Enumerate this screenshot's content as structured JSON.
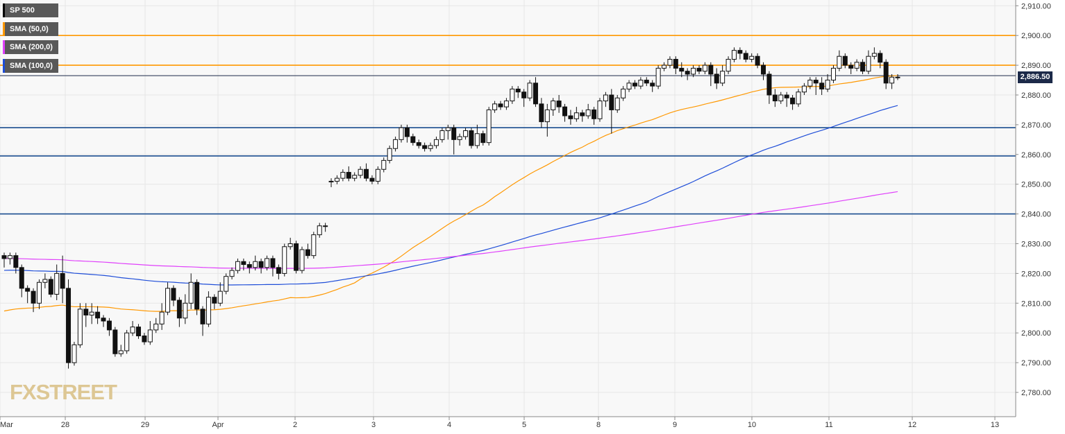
{
  "legend": [
    {
      "label": "SP 500",
      "color": "#000000"
    },
    {
      "label": "SMA (50,0)",
      "color": "#ff9800"
    },
    {
      "label": "SMA (200,0)",
      "color": "#e040fb"
    },
    {
      "label": "SMA (100,0)",
      "color": "#1e4dd8"
    }
  ],
  "price_tag": "2,886.50",
  "watermark": {
    "a": "FX",
    "b": "STREET"
  },
  "chart_data": {
    "type": "candlestick",
    "ylim": [
      2772,
      2912
    ],
    "yticks": [
      "2,780.00",
      "2,790.00",
      "2,800.00",
      "2,810.00",
      "2,820.00",
      "2,830.00",
      "2,840.00",
      "2,850.00",
      "2,860.00",
      "2,870.00",
      "2,880.00",
      "2,890.00",
      "2,900.00",
      "2,910.00"
    ],
    "xticks": [
      "Mar",
      "28",
      "29",
      "Apr",
      "2",
      "3",
      "4",
      "5",
      "8",
      "9",
      "10",
      "11",
      "12",
      "13"
    ],
    "last_price": 2886.5,
    "horizontal_lines": [
      {
        "value": 2900,
        "color": "#ff9800"
      },
      {
        "value": 2890,
        "color": "#ff9800"
      },
      {
        "value": 2869,
        "color": "#1a4d8f"
      },
      {
        "value": 2859.5,
        "color": "#1a4d8f"
      },
      {
        "value": 2840,
        "color": "#1a4d8f"
      },
      {
        "value": 2886.5,
        "color": "#1c2a49"
      }
    ],
    "candles": [
      [
        2826,
        2825,
        2827,
        2822
      ],
      [
        2825,
        2826,
        2827,
        2823
      ],
      [
        2826,
        2822,
        2827,
        2820
      ],
      [
        2822,
        2815,
        2823,
        2812
      ],
      [
        2815,
        2814,
        2816,
        2810
      ],
      [
        2814,
        2810,
        2815,
        2807
      ],
      [
        2810,
        2817,
        2818,
        2808
      ],
      [
        2817,
        2818,
        2820,
        2815
      ],
      [
        2818,
        2813,
        2819,
        2812
      ],
      [
        2813,
        2820,
        2823,
        2811
      ],
      [
        2820,
        2815,
        2826,
        2810
      ],
      [
        2815,
        2790,
        2818,
        2788
      ],
      [
        2790,
        2796,
        2797,
        2789
      ],
      [
        2796,
        2808,
        2810,
        2795
      ],
      [
        2808,
        2806,
        2810,
        2802
      ],
      [
        2806,
        2807,
        2810,
        2803
      ],
      [
        2807,
        2805,
        2809,
        2803
      ],
      [
        2805,
        2804,
        2806,
        2802
      ],
      [
        2804,
        2801,
        2805,
        2799
      ],
      [
        2801,
        2793,
        2802,
        2792
      ],
      [
        2793,
        2794,
        2796,
        2792
      ],
      [
        2794,
        2800,
        2801,
        2793
      ],
      [
        2800,
        2802,
        2804,
        2799
      ],
      [
        2802,
        2799,
        2803,
        2798
      ],
      [
        2799,
        2797,
        2800,
        2796
      ],
      [
        2797,
        2801,
        2804,
        2796
      ],
      [
        2801,
        2803,
        2805,
        2800
      ],
      [
        2803,
        2807,
        2810,
        2801
      ],
      [
        2807,
        2815,
        2817,
        2806
      ],
      [
        2815,
        2811,
        2816,
        2809
      ],
      [
        2811,
        2805,
        2812,
        2802
      ],
      [
        2805,
        2810,
        2813,
        2803
      ],
      [
        2810,
        2817,
        2820,
        2808
      ],
      [
        2817,
        2808,
        2818,
        2806
      ],
      [
        2808,
        2803,
        2809,
        2799
      ],
      [
        2803,
        2812,
        2814,
        2802
      ],
      [
        2812,
        2810,
        2813,
        2808
      ],
      [
        2810,
        2814,
        2817,
        2809
      ],
      [
        2814,
        2819,
        2820,
        2813
      ],
      [
        2819,
        2821,
        2822,
        2818
      ],
      [
        2821,
        2824,
        2825,
        2820
      ],
      [
        2824,
        2823,
        2825,
        2821
      ],
      [
        2823,
        2822,
        2824,
        2820
      ],
      [
        2822,
        2824,
        2826,
        2821
      ],
      [
        2824,
        2822,
        2825,
        2820
      ],
      [
        2822,
        2825,
        2826,
        2821
      ],
      [
        2825,
        2822,
        2826,
        2819
      ],
      [
        2822,
        2820,
        2823,
        2818
      ],
      [
        2820,
        2829,
        2830,
        2819
      ],
      [
        2829,
        2830,
        2832,
        2828
      ],
      [
        2830,
        2821,
        2831,
        2820
      ],
      [
        2821,
        2828,
        2829,
        2820
      ],
      [
        2828,
        2826,
        2830,
        2825
      ],
      [
        2826,
        2833,
        2834,
        2825
      ],
      [
        2833,
        2836,
        2837,
        2832
      ],
      [
        2836,
        2836,
        2837,
        2834
      ],
      [
        2851,
        2851,
        2852,
        2849
      ],
      [
        2851,
        2852,
        2853,
        2850
      ],
      [
        2852,
        2854,
        2855,
        2851
      ],
      [
        2854,
        2852,
        2856,
        2851
      ],
      [
        2852,
        2853,
        2854,
        2851
      ],
      [
        2853,
        2855,
        2856,
        2852
      ],
      [
        2855,
        2852,
        2857,
        2851
      ],
      [
        2852,
        2851,
        2853,
        2850
      ],
      [
        2851,
        2855,
        2856,
        2850
      ],
      [
        2855,
        2858,
        2859,
        2854
      ],
      [
        2858,
        2862,
        2863,
        2857
      ],
      [
        2862,
        2865,
        2866,
        2861
      ],
      [
        2865,
        2869,
        2870,
        2864
      ],
      [
        2869,
        2866,
        2870,
        2864
      ],
      [
        2866,
        2864,
        2867,
        2863
      ],
      [
        2864,
        2863,
        2865,
        2862
      ],
      [
        2863,
        2862,
        2864,
        2861
      ],
      [
        2862,
        2863,
        2864,
        2861
      ],
      [
        2863,
        2865,
        2866,
        2862
      ],
      [
        2865,
        2868,
        2869,
        2864
      ],
      [
        2868,
        2869,
        2870,
        2865
      ],
      [
        2869,
        2865,
        2870,
        2860
      ],
      [
        2865,
        2866,
        2867,
        2863
      ],
      [
        2866,
        2868,
        2869,
        2865
      ],
      [
        2868,
        2863,
        2869,
        2862
      ],
      [
        2863,
        2867,
        2870,
        2862
      ],
      [
        2867,
        2864,
        2868,
        2863
      ],
      [
        2864,
        2875,
        2876,
        2863
      ],
      [
        2875,
        2877,
        2878,
        2874
      ],
      [
        2877,
        2876,
        2878,
        2875
      ],
      [
        2876,
        2878,
        2879,
        2875
      ],
      [
        2878,
        2882,
        2883,
        2877
      ],
      [
        2882,
        2881,
        2883,
        2879
      ],
      [
        2881,
        2879,
        2882,
        2876
      ],
      [
        2879,
        2884,
        2885,
        2878
      ],
      [
        2884,
        2877,
        2886,
        2876
      ],
      [
        2877,
        2871,
        2879,
        2869
      ],
      [
        2871,
        2875,
        2877,
        2866
      ],
      [
        2875,
        2878,
        2879,
        2873
      ],
      [
        2878,
        2876,
        2880,
        2874
      ],
      [
        2876,
        2873,
        2877,
        2871
      ],
      [
        2873,
        2872,
        2875,
        2870
      ],
      [
        2872,
        2874,
        2876,
        2871
      ],
      [
        2874,
        2873,
        2875,
        2871
      ],
      [
        2873,
        2875,
        2877,
        2872
      ],
      [
        2875,
        2872,
        2876,
        2870
      ],
      [
        2872,
        2878,
        2879,
        2871
      ],
      [
        2878,
        2880,
        2881,
        2876
      ],
      [
        2880,
        2875,
        2882,
        2867
      ],
      [
        2875,
        2879,
        2880,
        2874
      ],
      [
        2879,
        2882,
        2883,
        2878
      ],
      [
        2882,
        2884,
        2885,
        2881
      ],
      [
        2884,
        2883,
        2885,
        2882
      ],
      [
        2883,
        2885,
        2886,
        2882
      ],
      [
        2885,
        2884,
        2886,
        2883
      ],
      [
        2884,
        2883,
        2885,
        2881
      ],
      [
        2883,
        2889,
        2890,
        2882
      ],
      [
        2889,
        2890,
        2891,
        2888
      ],
      [
        2890,
        2892,
        2893,
        2889
      ],
      [
        2892,
        2889,
        2893,
        2887
      ],
      [
        2889,
        2888,
        2891,
        2886
      ],
      [
        2888,
        2887,
        2889,
        2885
      ],
      [
        2887,
        2889,
        2890,
        2886
      ],
      [
        2889,
        2888,
        2890,
        2887
      ],
      [
        2888,
        2890,
        2891,
        2887
      ],
      [
        2890,
        2887,
        2891,
        2883
      ],
      [
        2887,
        2884,
        2889,
        2882
      ],
      [
        2884,
        2888,
        2890,
        2883
      ],
      [
        2888,
        2892,
        2893,
        2887
      ],
      [
        2892,
        2895,
        2896,
        2891
      ],
      [
        2895,
        2894,
        2896,
        2892
      ],
      [
        2894,
        2892,
        2895,
        2891
      ],
      [
        2892,
        2893,
        2894,
        2891
      ],
      [
        2893,
        2890,
        2894,
        2889
      ],
      [
        2890,
        2887,
        2891,
        2885
      ],
      [
        2887,
        2880,
        2888,
        2877
      ],
      [
        2880,
        2878,
        2882,
        2876
      ],
      [
        2878,
        2880,
        2881,
        2877
      ],
      [
        2880,
        2879,
        2881,
        2876
      ],
      [
        2879,
        2877,
        2880,
        2875
      ],
      [
        2877,
        2881,
        2882,
        2876
      ],
      [
        2881,
        2883,
        2884,
        2880
      ],
      [
        2883,
        2885,
        2886,
        2882
      ],
      [
        2885,
        2884,
        2886,
        2880
      ],
      [
        2884,
        2882,
        2886,
        2880
      ],
      [
        2882,
        2885,
        2887,
        2881
      ],
      [
        2885,
        2889,
        2890,
        2884
      ],
      [
        2889,
        2893,
        2895,
        2888
      ],
      [
        2893,
        2890,
        2894,
        2889
      ],
      [
        2890,
        2889,
        2891,
        2887
      ],
      [
        2889,
        2891,
        2892,
        2888
      ],
      [
        2891,
        2888,
        2892,
        2887
      ],
      [
        2888,
        2893,
        2895,
        2887
      ],
      [
        2893,
        2894,
        2896,
        2892
      ],
      [
        2894,
        2891,
        2895,
        2889
      ],
      [
        2891,
        2884,
        2892,
        2882
      ],
      [
        2884,
        2886,
        2887,
        2882
      ],
      [
        2886,
        2886,
        2887,
        2885
      ]
    ]
  }
}
